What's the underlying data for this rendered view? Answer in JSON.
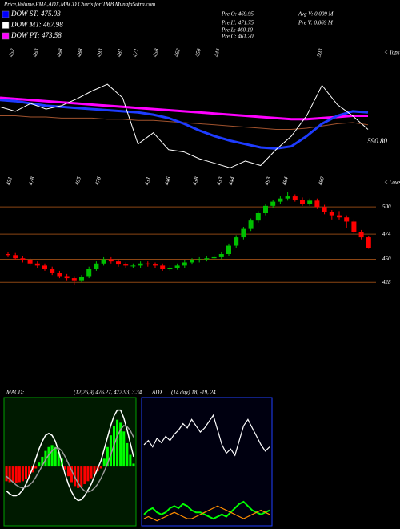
{
  "chart_data": [
    {
      "type": "candlestick",
      "title": "Price,Volume,EMA,ADX,MACD Charts for TMB MunafaSutra.com",
      "legend": [
        {
          "label": "DOW ST: 475.03",
          "color": "#0000ff"
        },
        {
          "label": "DOW MT: 467.98",
          "color": "#ffffff"
        },
        {
          "label": "DOW PT: 473.58",
          "color": "#ff00ff"
        }
      ],
      "stats": [
        "Pre O: 469.95",
        "Pre H: 471.75",
        "Pre L: 460.10",
        "Pre C: 461.20",
        "Avg V: 0.009 M",
        "Pre V: 0.069 M"
      ],
      "tops_label": "< Tops",
      "tops": [
        "452",
        "463",
        "468",
        "488",
        "493",
        "481",
        "471",
        "458",
        "462",
        "450",
        "444",
        "503"
      ],
      "lows_label": "< Lows",
      "lows": [
        "451",
        "478",
        "465",
        "476",
        "431",
        "446",
        "438",
        "433",
        "444",
        "493",
        "484",
        "480"
      ],
      "annotation": "590.80",
      "overlay_ylim": [
        420,
        530
      ],
      "overlay": [
        {
          "color": "#a0522d",
          "values": [
            470,
            470,
            469,
            469,
            468,
            468,
            468,
            467,
            467,
            466,
            466,
            465,
            464,
            463,
            462,
            461,
            460,
            459,
            458,
            458,
            459,
            461,
            463,
            464,
            462
          ]
        },
        {
          "color": "#ff00ff",
          "values": [
            486,
            485,
            484,
            483,
            482,
            481,
            480,
            479,
            478,
            477,
            476,
            475,
            474,
            473,
            472,
            471,
            470,
            469,
            468,
            467,
            467,
            468,
            469,
            470,
            470
          ]
        },
        {
          "color": "#1e3cff",
          "values": [
            484,
            483,
            481,
            479,
            478,
            477,
            476,
            475,
            474,
            473,
            471,
            468,
            463,
            457,
            452,
            448,
            445,
            442,
            441,
            443,
            452,
            463,
            470,
            474,
            473
          ]
        },
        {
          "color": "#ffffff",
          "values": [
            478,
            474,
            481,
            476,
            479,
            485,
            492,
            498,
            486,
            445,
            455,
            440,
            438,
            432,
            428,
            424,
            430,
            426,
            440,
            452,
            470,
            497,
            480,
            470,
            458
          ]
        }
      ],
      "open": [
        455,
        454,
        451,
        449,
        446,
        444,
        441,
        437,
        434,
        432,
        430,
        434,
        441,
        446,
        450,
        448,
        445,
        444,
        444,
        446,
        445,
        444,
        441,
        442,
        444,
        447,
        449,
        450,
        451,
        452,
        455,
        463,
        471,
        479,
        487,
        494,
        501,
        505,
        508,
        510,
        507,
        503,
        506,
        500,
        495,
        492,
        490,
        486,
        476,
        471
      ],
      "high": [
        457,
        456,
        453,
        451,
        448,
        446,
        443,
        439,
        436,
        434,
        435,
        443,
        448,
        452,
        452,
        450,
        447,
        446,
        448,
        448,
        447,
        446,
        444,
        446,
        449,
        451,
        452,
        453,
        454,
        457,
        465,
        473,
        481,
        489,
        496,
        503,
        507,
        510,
        514,
        512,
        509,
        508,
        508,
        502,
        497,
        496,
        492,
        488,
        478,
        472
      ],
      "low": [
        452,
        449,
        447,
        444,
        442,
        439,
        435,
        432,
        430,
        426,
        428,
        432,
        439,
        444,
        446,
        443,
        442,
        442,
        442,
        443,
        442,
        439,
        439,
        440,
        442,
        445,
        447,
        448,
        449,
        450,
        453,
        461,
        469,
        477,
        485,
        492,
        499,
        503,
        506,
        505,
        501,
        501,
        498,
        493,
        488,
        488,
        480,
        474,
        469,
        460
      ],
      "close": [
        454,
        451,
        449,
        446,
        444,
        441,
        437,
        434,
        432,
        430,
        433,
        441,
        446,
        450,
        448,
        445,
        444,
        444,
        446,
        445,
        444,
        441,
        442,
        444,
        447,
        449,
        450,
        451,
        452,
        455,
        463,
        471,
        479,
        487,
        494,
        501,
        505,
        508,
        510,
        507,
        503,
        506,
        500,
        495,
        492,
        490,
        486,
        476,
        471,
        461
      ],
      "up_color": "#00c000",
      "down_color": "#ff0000",
      "ylim": [
        390,
        520
      ],
      "yticks": [
        428,
        450,
        474,
        500
      ],
      "grid_color": "#8b4513"
    },
    {
      "type": "macd",
      "title": "MACD:",
      "params": "(12,26,9) 476.27, 472.93, 3.34",
      "ylim": [
        -6,
        7
      ],
      "up_color": "#00ff00",
      "down_color": "#ff0000",
      "histogram": [
        -1.5,
        -1.6,
        -1.6,
        -1.7,
        -1.6,
        -1.5,
        -1.3,
        -1.0,
        -0.6,
        -0.2,
        0.4,
        1.0,
        1.6,
        2.0,
        2.2,
        2.0,
        1.5,
        0.8,
        -0.3,
        -1.0,
        -1.6,
        -2.0,
        -2.2,
        -2.1,
        -1.8,
        -1.5,
        -1.2,
        -0.8,
        -0.5,
        -0.2,
        0.8,
        2.0,
        3.2,
        4.2,
        4.8,
        4.5,
        3.6,
        2.4,
        1.2,
        0.3
      ],
      "lines": [
        {
          "color": "#ffffff",
          "values": [
            -2.5,
            -2.8,
            -3.0,
            -3.0,
            -2.8,
            -2.4,
            -1.8,
            -1.0,
            -0.2,
            0.8,
            1.8,
            2.6,
            3.2,
            3.4,
            3.2,
            2.6,
            1.6,
            0.4,
            -0.8,
            -1.8,
            -2.6,
            -3.2,
            -3.5,
            -3.4,
            -3.0,
            -2.4,
            -1.8,
            -1.0,
            -0.2,
            0.6,
            1.8,
            3.0,
            4.2,
            5.2,
            5.8,
            5.8,
            5.0,
            3.8,
            2.4,
            1.0
          ]
        },
        {
          "color": "#9a9a9a",
          "values": [
            -1.0,
            -1.3,
            -1.6,
            -1.9,
            -2.1,
            -2.2,
            -2.1,
            -1.9,
            -1.6,
            -1.1,
            -0.5,
            0.1,
            0.7,
            1.2,
            1.6,
            1.9,
            1.9,
            1.6,
            1.0,
            0.3,
            -0.4,
            -1.1,
            -1.7,
            -2.2,
            -2.5,
            -2.6,
            -2.5,
            -2.2,
            -1.8,
            -1.2,
            -0.5,
            0.3,
            1.2,
            2.2,
            3.1,
            3.8,
            4.2,
            4.1,
            3.7,
            3.0
          ]
        }
      ]
    },
    {
      "type": "adx",
      "title": "ADX",
      "params": "(14 day) 18, -19, 24",
      "ylim": [
        0,
        60
      ],
      "lines": [
        {
          "color": "#ffffff",
          "values": [
            38,
            40,
            37,
            41,
            39,
            42,
            40,
            43,
            45,
            48,
            46,
            50,
            47,
            44,
            46,
            49,
            52,
            45,
            38,
            34,
            36,
            33,
            40,
            47,
            50,
            46,
            42,
            38,
            35,
            37
          ]
        },
        {
          "color": "#00ff00",
          "values": [
            5,
            7,
            8,
            6,
            5,
            6,
            8,
            9,
            8,
            10,
            9,
            7,
            6,
            6,
            5,
            4,
            3,
            4,
            5,
            4,
            6,
            8,
            10,
            11,
            9,
            7,
            6,
            5,
            6,
            7
          ]
        },
        {
          "color": "#ff8c00",
          "values": [
            3,
            4,
            3,
            2,
            3,
            4,
            5,
            6,
            5,
            4,
            3,
            3,
            4,
            5,
            6,
            7,
            8,
            9,
            8,
            7,
            6,
            5,
            4,
            3,
            4,
            5,
            6,
            7,
            6,
            5
          ]
        }
      ]
    }
  ]
}
